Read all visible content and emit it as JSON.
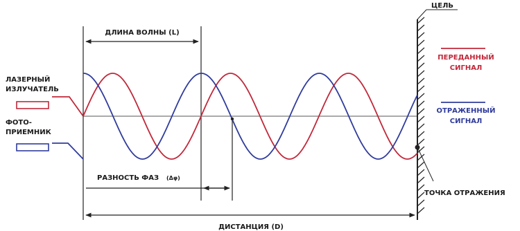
{
  "labels": {
    "wavelength": "ДЛИНА ВОЛНЫ (L)",
    "target": "ЦЕЛЬ",
    "transmitted_line1": "ПЕРЕДАННЫЙ",
    "transmitted_line2": "СИГНАЛ",
    "reflected_line1": "ОТРАЖЕННЫЙ",
    "reflected_line2": "СИГНАЛ",
    "laser_line1": "ЛАЗЕРНЫЙ",
    "laser_line2": "ИЗЛУЧАТЕЛЬ",
    "photo_line1": "ФОТО-",
    "photo_line2": "ПРИЕМНИК",
    "phase_difference": "РАЗНОСТЬ ФАЗ",
    "phase_symbol": "(Δφ)",
    "reflection_point": "ТОЧКА ОТРАЖЕНИЯ",
    "distance": "ДИСТАНЦИЯ (D)"
  },
  "colors": {
    "transmitted": "#c0283a",
    "reflected": "#2f3b9c",
    "axis": "#555555",
    "text": "#1a1a1a"
  }
}
